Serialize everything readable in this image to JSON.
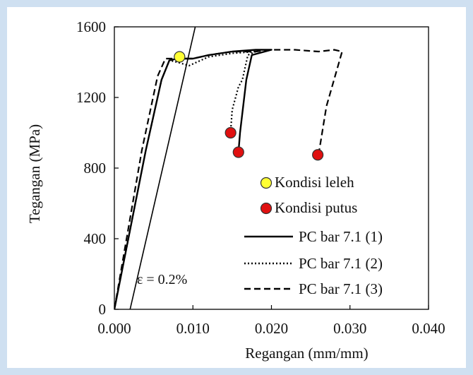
{
  "colors": {
    "background": "#cfe0f1",
    "plot_background": "#ffffff",
    "axis": "#000000",
    "yield_marker": "#ffff33",
    "break_marker": "#e01010"
  },
  "chart_data": {
    "type": "line",
    "xlabel": "Regangan (mm/mm)",
    "ylabel": "Tegangan (MPa)",
    "xlim": [
      0,
      0.04
    ],
    "ylim": [
      0,
      1600
    ],
    "xticks": [
      "0.000",
      "0.010",
      "0.020",
      "0.030",
      "0.040"
    ],
    "yticks": [
      "0",
      "400",
      "800",
      "1200",
      "1600"
    ],
    "grid": false,
    "legend_position": "bottom-right",
    "offset_line": {
      "label": "ε = 0.2%",
      "points": [
        [
          0.002,
          0
        ],
        [
          0.0103,
          1600
        ]
      ]
    },
    "series": [
      {
        "name": "PC bar 7.1 (1)",
        "style": "solid",
        "points": [
          [
            0,
            0
          ],
          [
            0.004,
            900
          ],
          [
            0.006,
            1300
          ],
          [
            0.007,
            1410
          ],
          [
            0.008,
            1420
          ],
          [
            0.01,
            1420
          ],
          [
            0.012,
            1440
          ],
          [
            0.015,
            1460
          ],
          [
            0.018,
            1470
          ],
          [
            0.02,
            1470
          ],
          [
            0.0175,
            1440
          ],
          [
            0.0168,
            1300
          ],
          [
            0.016,
            1000
          ],
          [
            0.0158,
            890
          ]
        ]
      },
      {
        "name": "PC bar 7.1 (2)",
        "style": "dotted",
        "points": [
          [
            0,
            0
          ],
          [
            0.004,
            900
          ],
          [
            0.006,
            1300
          ],
          [
            0.007,
            1410
          ],
          [
            0.008,
            1400
          ],
          [
            0.0095,
            1380
          ],
          [
            0.0105,
            1400
          ],
          [
            0.012,
            1430
          ],
          [
            0.015,
            1450
          ],
          [
            0.018,
            1460
          ],
          [
            0.0185,
            1470
          ],
          [
            0.017,
            1440
          ],
          [
            0.0163,
            1300
          ],
          [
            0.0158,
            1260
          ],
          [
            0.015,
            1130
          ],
          [
            0.0148,
            1000
          ]
        ]
      },
      {
        "name": "PC bar 7.1 (3)",
        "style": "dashed",
        "points": [
          [
            0,
            0
          ],
          [
            0.0035,
            900
          ],
          [
            0.0055,
            1320
          ],
          [
            0.0065,
            1420
          ],
          [
            0.008,
            1420
          ],
          [
            0.01,
            1420
          ],
          [
            0.012,
            1440
          ],
          [
            0.015,
            1460
          ],
          [
            0.018,
            1460
          ],
          [
            0.02,
            1470
          ],
          [
            0.023,
            1470
          ],
          [
            0.026,
            1460
          ],
          [
            0.028,
            1470
          ],
          [
            0.029,
            1460
          ],
          [
            0.027,
            1150
          ],
          [
            0.026,
            875
          ]
        ]
      }
    ],
    "markers": [
      {
        "name": "Kondisi leleh",
        "color": "#ffff33",
        "points": [
          [
            0.0083,
            1430
          ]
        ]
      },
      {
        "name": "Kondisi putus",
        "color": "#e01010",
        "points": [
          [
            0.0148,
            1000
          ],
          [
            0.0158,
            890
          ],
          [
            0.0259,
            875
          ]
        ]
      }
    ]
  }
}
